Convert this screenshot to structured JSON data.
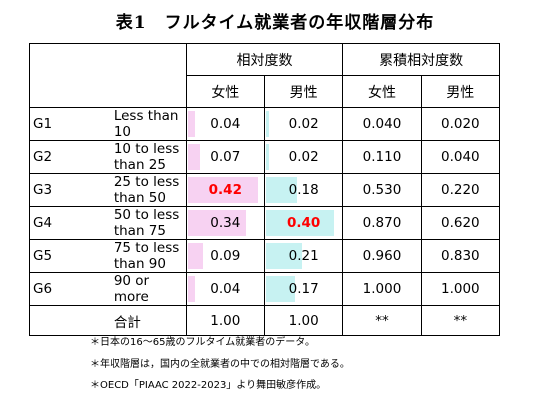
{
  "title": "表1　フルタイム就業者の年収階層分布",
  "headers": {
    "relative": "相対度数",
    "cumulative": "累積相対度数",
    "female": "女性",
    "male": "男性"
  },
  "rows": [
    {
      "code": "G1",
      "label": "Less than 10",
      "f": "0.04",
      "m": "0.02",
      "cf": "0.040",
      "cm": "0.020",
      "fv": 0.04,
      "mv": 0.02,
      "fh": false,
      "mh": false
    },
    {
      "code": "G2",
      "label": "10 to less than 25",
      "f": "0.07",
      "m": "0.02",
      "cf": "0.110",
      "cm": "0.040",
      "fv": 0.07,
      "mv": 0.02,
      "fh": false,
      "mh": false
    },
    {
      "code": "G3",
      "label": "25 to less than 50",
      "f": "0.42",
      "m": "0.18",
      "cf": "0.530",
      "cm": "0.220",
      "fv": 0.42,
      "mv": 0.18,
      "fh": true,
      "mh": false
    },
    {
      "code": "G4",
      "label": "50 to less than 75",
      "f": "0.34",
      "m": "0.40",
      "cf": "0.870",
      "cm": "0.620",
      "fv": 0.34,
      "mv": 0.4,
      "fh": false,
      "mh": true
    },
    {
      "code": "G5",
      "label": "75 to less than 90",
      "f": "0.09",
      "m": "0.21",
      "cf": "0.960",
      "cm": "0.830",
      "fv": 0.09,
      "mv": 0.21,
      "fh": false,
      "mh": false
    },
    {
      "code": "G6",
      "label": "90 or more",
      "f": "0.04",
      "m": "0.17",
      "cf": "1.000",
      "cm": "1.000",
      "fv": 0.04,
      "mv": 0.17,
      "fh": false,
      "mh": false
    }
  ],
  "total": {
    "label": "合計",
    "f": "1.00",
    "m": "1.00",
    "cf": "**",
    "cm": "**"
  },
  "notes": [
    "＊日本の16～65歳のフルタイム就業者のデータ。",
    "＊年収階層は，国内の全就業者の中での相対階層である。",
    "＊OECD「PIAAC 2022-2023」より舞田敏彦作成。"
  ],
  "colors": {
    "female_bar": "#f7d2f2",
    "male_bar": "#c7f2f2",
    "highlight": "#ff0000"
  }
}
